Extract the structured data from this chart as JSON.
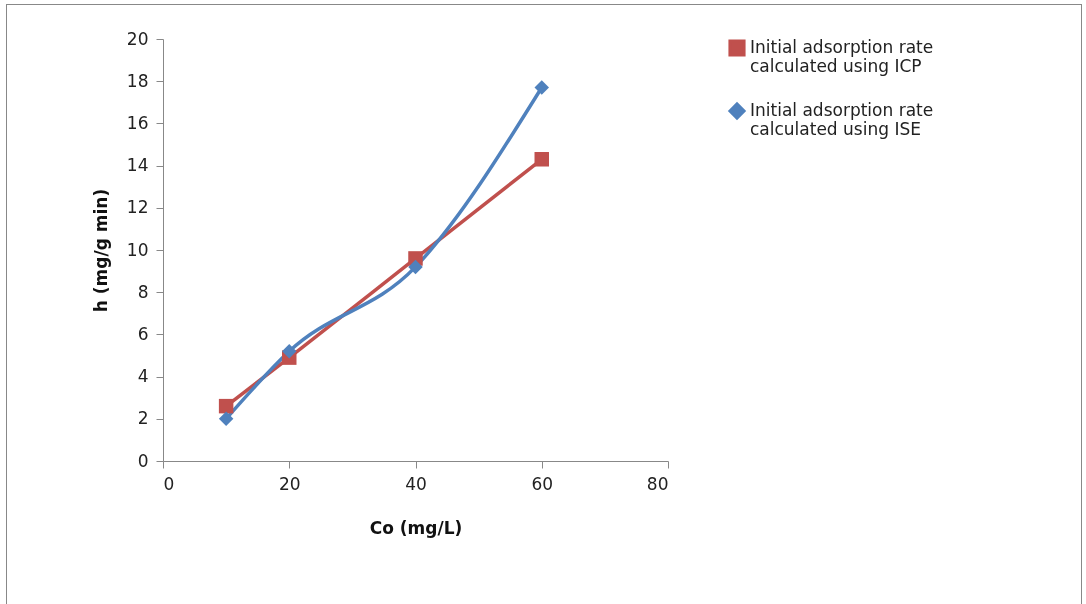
{
  "chart_data": {
    "type": "line",
    "xlabel": "Co (mg/L)",
    "ylabel": "h (mg/g min)",
    "x": [
      10,
      20,
      40,
      60
    ],
    "series": [
      {
        "name": "Initial adsorption rate calculated using ICP",
        "color": "#c0504d",
        "marker": "square",
        "values": [
          2.6,
          4.9,
          9.6,
          14.3
        ]
      },
      {
        "name": "Initial adsorption rate calculated using ISE",
        "color": "#4f81bd",
        "marker": "diamond",
        "values": [
          2.0,
          5.2,
          9.2,
          17.7
        ]
      }
    ],
    "xlim": [
      0,
      80
    ],
    "xticks": [
      0,
      20,
      40,
      60,
      80
    ],
    "ylim": [
      0,
      20
    ],
    "yticks": [
      0,
      2,
      4,
      6,
      8,
      10,
      12,
      14,
      16,
      18,
      20
    ],
    "grid": false,
    "legend": "right",
    "line_style": "solid"
  }
}
